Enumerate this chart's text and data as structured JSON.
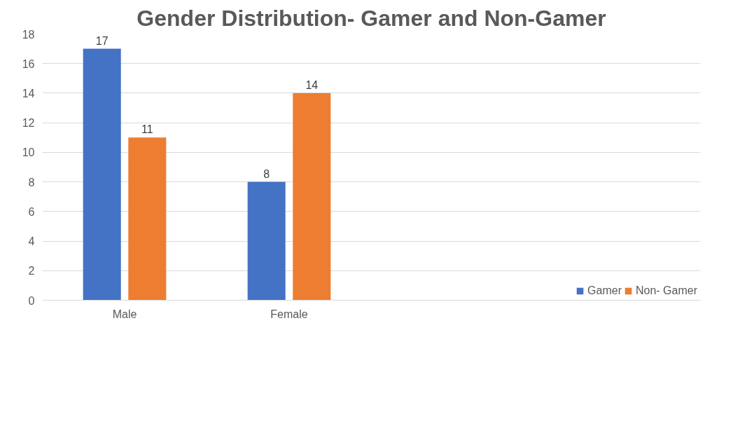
{
  "chart_data": {
    "type": "bar",
    "title": "Gender Distribution- Gamer and Non-Gamer",
    "categories": [
      "Male",
      "Female",
      null,
      null
    ],
    "series": [
      {
        "name": "Gamer",
        "color": "#4472c4",
        "values": [
          17,
          8,
          null,
          null
        ]
      },
      {
        "name": "Non- Gamer",
        "color": "#ed7d31",
        "values": [
          11,
          14,
          null,
          null
        ]
      }
    ],
    "ylim": [
      0,
      18
    ],
    "yticks": [
      0,
      2,
      4,
      6,
      8,
      10,
      12,
      14,
      16,
      18
    ],
    "grid": "y",
    "legend": "bottom right",
    "data_labels": true
  }
}
